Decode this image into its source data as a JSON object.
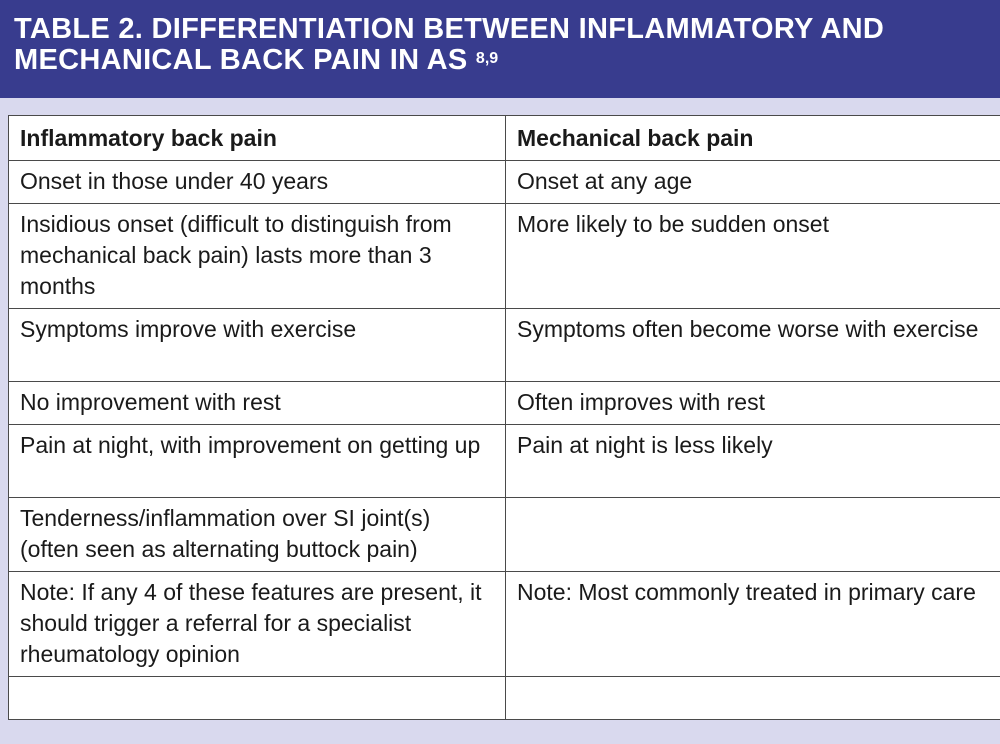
{
  "header": {
    "title_line1": "TABLE 2. DIFFERENTIATION BETWEEN INFLAMMATORY AND",
    "title_line2": "MECHANICAL BACK PAIN IN AS",
    "superscript": "8,9",
    "background_color": "#383c8e"
  },
  "table": {
    "columns": [
      "Inflammatory back pain",
      "Mechanical back pain"
    ],
    "rows": [
      [
        "Onset in those under 40 years",
        "Onset at any age"
      ],
      [
        "Insidious onset (difficult to distinguish from mechanical back pain) lasts more than 3 months",
        "More likely to be sudden onset"
      ],
      [
        "Symptoms improve with exercise",
        "Symptoms often become worse with exercise"
      ],
      [
        "No improvement with rest",
        "Often improves with rest"
      ],
      [
        "Pain at night, with improvement on getting up",
        "Pain at night is less likely"
      ],
      [
        "Tenderness/inflammation over SI joint(s) (often seen as alternating buttock pain)",
        ""
      ],
      [
        "Note: If any 4 of these features are present, it should trigger a referral for a specialist rheumatology opinion",
        "Note: Most commonly treated in primary care"
      ],
      [
        "",
        ""
      ]
    ]
  },
  "page_background_color": "#d9d9ee"
}
